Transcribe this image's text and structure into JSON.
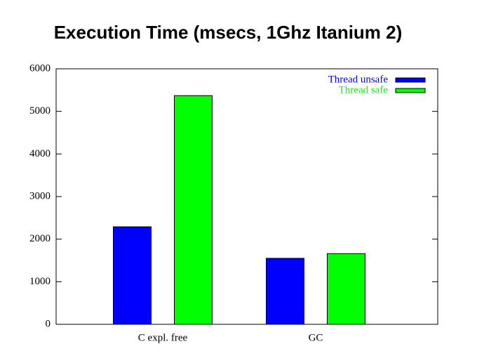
{
  "chart_data": {
    "type": "bar",
    "title": "Execution Time (msecs, 1Ghz Itanium 2)",
    "categories": [
      "C expl. free",
      "GC"
    ],
    "series": [
      {
        "name": "Thread unsafe",
        "color": "#0000ff",
        "values": [
          2290,
          1550
        ]
      },
      {
        "name": "Thread safe",
        "color": "#00ff00",
        "values": [
          5370,
          1660
        ]
      }
    ],
    "ylim": [
      0,
      6000
    ],
    "yticks": [
      0,
      1000,
      2000,
      3000,
      4000,
      5000,
      6000
    ],
    "legend": "upper-right"
  }
}
